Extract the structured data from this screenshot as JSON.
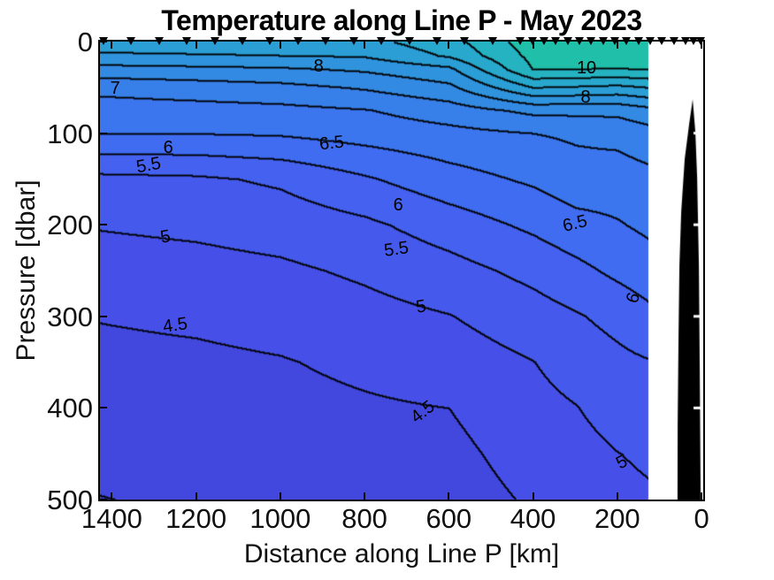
{
  "title": "Temperature along Line P - May 2023",
  "axes": {
    "xlabel": "Distance along Line P [km]",
    "ylabel": "Pressure [dbar]",
    "x_ticks": [
      1400,
      1200,
      1000,
      800,
      600,
      400,
      200,
      0
    ],
    "y_ticks": [
      0,
      100,
      200,
      300,
      400,
      500
    ],
    "x_range": [
      1428,
      -4
    ],
    "y_range": [
      0,
      500
    ],
    "x_reversed": true,
    "y_reversed_depth_down": true
  },
  "chart_data": {
    "type": "heatmap",
    "subtype": "filled_contour_section",
    "title": "Temperature along Line P - May 2023",
    "xlabel": "Distance along Line P [km]",
    "ylabel": "Pressure [dbar]",
    "units": "deg C",
    "contour_interval": 0.5,
    "labeled_contours": [
      4.5,
      5,
      5.5,
      6,
      6.5,
      7,
      8,
      10
    ],
    "x_km": [
      1428,
      1200,
      1000,
      800,
      600,
      400,
      300,
      200,
      126
    ],
    "pressure_dbar": [
      0,
      15,
      30,
      50,
      75,
      100,
      150,
      200,
      250,
      300,
      350,
      400,
      450,
      500
    ],
    "grid_note": "temperature_grid[row][col] : row = pressure_dbar index, col = x_km index",
    "temperature_grid": [
      [
        8.8,
        8.8,
        8.8,
        8.85,
        9.3,
        10.3,
        10.35,
        10.4,
        10.45
      ],
      [
        8.41,
        8.46,
        8.5,
        8.55,
        9.07,
        10.15,
        10.2,
        10.22,
        10.3
      ],
      [
        7.81,
        7.87,
        7.93,
        8.07,
        8.38,
        10.02,
        10.0,
        9.98,
        10.01
      ],
      [
        7.14,
        7.25,
        7.35,
        7.55,
        7.88,
        9.0,
        8.94,
        8.86,
        9.0
      ],
      [
        6.77,
        6.81,
        6.86,
        6.97,
        7.25,
        7.62,
        7.63,
        7.64,
        7.83
      ],
      [
        6.5,
        6.51,
        6.55,
        6.7,
        6.85,
        7.0,
        7.07,
        7.14,
        7.31
      ],
      [
        5.37,
        5.42,
        5.58,
        5.94,
        6.3,
        6.58,
        6.8,
        6.76,
        6.85
      ],
      [
        5.03,
        5.1,
        5.21,
        5.4,
        5.74,
        6.1,
        6.32,
        6.46,
        6.6
      ],
      [
        4.78,
        4.83,
        4.91,
        5.08,
        5.32,
        5.64,
        5.86,
        6.11,
        6.27
      ],
      [
        4.52,
        4.58,
        4.67,
        4.83,
        4.98,
        5.28,
        5.45,
        5.65,
        5.87
      ],
      [
        4.38,
        4.41,
        4.47,
        4.6,
        4.74,
        4.99,
        5.21,
        5.38,
        5.47
      ],
      [
        4.25,
        4.28,
        4.36,
        4.44,
        4.5,
        4.84,
        4.98,
        5.2,
        5.28
      ],
      [
        4.1,
        4.17,
        4.24,
        4.31,
        4.37,
        4.7,
        4.83,
        4.99,
        5.07
      ],
      [
        3.99,
        4.05,
        4.13,
        4.2,
        4.27,
        4.56,
        4.68,
        4.88,
        4.94
      ]
    ],
    "band_min": 3.5,
    "band_step": 0.5,
    "band_colors": [
      "#3e3fd2",
      "#4248dd",
      "#4650e9",
      "#4559ec",
      "#4462ef",
      "#3f6cf1",
      "#3b76ee",
      "#3780ea",
      "#338ae3",
      "#2f94dd",
      "#2b9ed5",
      "#28a8cd",
      "#25b2c1",
      "#1fbfa9",
      "#1cc49c"
    ],
    "line_color": "#000000",
    "no_data_right_of_km": 126,
    "stations_km": [
      1420,
      1354,
      1288,
      1222,
      1156,
      1090,
      1024,
      958,
      892,
      826,
      760,
      694,
      628,
      562,
      496,
      430,
      402,
      374,
      346,
      318,
      290,
      262,
      234,
      206,
      178,
      150,
      122,
      94,
      66,
      38,
      19,
      2
    ],
    "marker_color": "#000000",
    "bathymetry_polygon_km_dbar": [
      [
        21,
        63
      ],
      [
        29.4,
        90
      ],
      [
        39.9,
        128
      ],
      [
        48.3,
        186
      ],
      [
        52.5,
        244
      ],
      [
        54.6,
        321
      ],
      [
        56.7,
        418
      ],
      [
        57,
        500
      ],
      [
        2.1,
        500
      ],
      [
        4.2,
        360
      ],
      [
        6.3,
        244
      ],
      [
        10.5,
        148
      ],
      [
        14.7,
        99
      ],
      [
        18.9,
        75
      ]
    ],
    "bathymetry_color": "#000000",
    "right_edge_tick_dbar": [
      100,
      200,
      300,
      400
    ],
    "contour_labels": [
      {
        "text": "8",
        "km": 909,
        "dbar": 27,
        "rot": 0
      },
      {
        "text": "7",
        "km": 1392,
        "dbar": 51,
        "rot": 0
      },
      {
        "text": "10",
        "km": 273,
        "dbar": 29,
        "rot": 0
      },
      {
        "text": "8",
        "km": 275,
        "dbar": 61,
        "rot": 0
      },
      {
        "text": "6.5",
        "km": 878,
        "dbar": 111,
        "rot": -6
      },
      {
        "text": "6",
        "km": 1266,
        "dbar": 116,
        "rot": 0
      },
      {
        "text": "5.5",
        "km": 1312,
        "dbar": 135,
        "rot": -10
      },
      {
        "text": "6",
        "km": 720,
        "dbar": 179,
        "rot": 0
      },
      {
        "text": "6.5",
        "km": 300,
        "dbar": 199,
        "rot": -14
      },
      {
        "text": "6",
        "km": 162,
        "dbar": 280,
        "rot": -72
      },
      {
        "text": "5",
        "km": 1273,
        "dbar": 213,
        "rot": -10
      },
      {
        "text": "5.5",
        "km": 724,
        "dbar": 227,
        "rot": -8
      },
      {
        "text": "5",
        "km": 666,
        "dbar": 290,
        "rot": -10
      },
      {
        "text": "4.5",
        "km": 1249,
        "dbar": 310,
        "rot": -8
      },
      {
        "text": "4.5",
        "km": 661,
        "dbar": 404,
        "rot": -38
      },
      {
        "text": "5",
        "km": 189,
        "dbar": 459,
        "rot": -28
      }
    ]
  }
}
